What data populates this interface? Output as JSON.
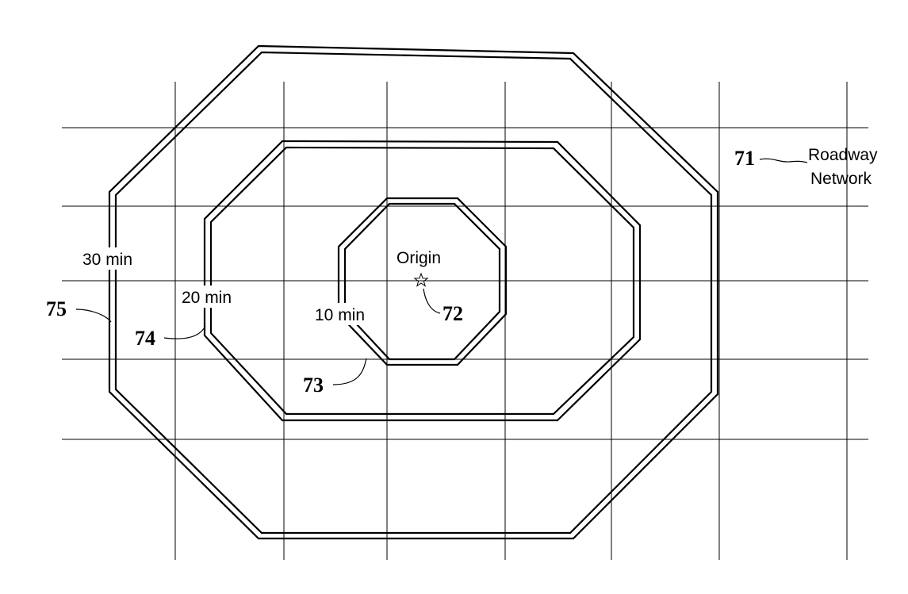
{
  "diagram": {
    "roadway_label_line1": "Roadway",
    "roadway_label_line2": "Network",
    "origin_label": "Origin",
    "zones": [
      {
        "label": "10 min",
        "ref": "73"
      },
      {
        "label": "20 min",
        "ref": "74"
      },
      {
        "label": "30 min",
        "ref": "75"
      }
    ],
    "refs": {
      "roadway_network": "71",
      "origin": "72"
    }
  }
}
